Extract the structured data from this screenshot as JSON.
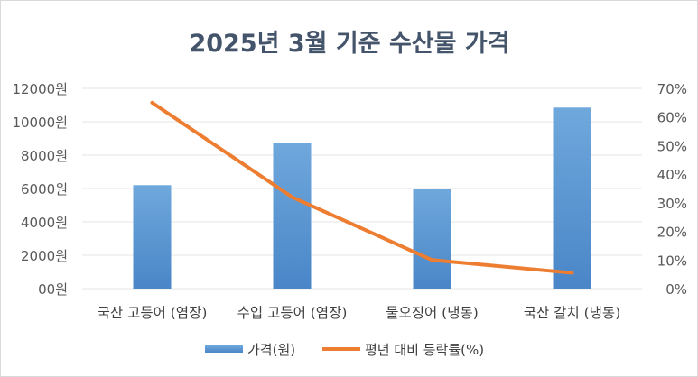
{
  "chart_data": {
    "type": "bar+line",
    "title": "2025년 3월 기준 수산물 가격",
    "categories": [
      "국산 고등어 (염장)",
      "수입 고등어 (염장)",
      "물오징어 (냉동)",
      "국산 갈치 (냉동)"
    ],
    "series": [
      {
        "name": "가격(원)",
        "type": "bar",
        "axis": "left",
        "color": "#5b9bd5",
        "values": [
          6200,
          8750,
          5950,
          10850
        ]
      },
      {
        "name": "평년 대비 등락률(%)",
        "type": "line",
        "axis": "right",
        "color": "#ed7d31",
        "values": [
          65,
          32,
          10,
          5.5
        ]
      }
    ],
    "left_axis": {
      "ylim": [
        0,
        12000
      ],
      "tick_labels": [
        "00원",
        "2000원",
        "4000원",
        "6000원",
        "8000원",
        "10000원",
        "12000원"
      ]
    },
    "right_axis": {
      "ylim": [
        0,
        70
      ],
      "tick_labels": [
        "0%",
        "10%",
        "20%",
        "30%",
        "40%",
        "50%",
        "60%",
        "70%"
      ]
    },
    "grid": true,
    "legend_position": "bottom"
  }
}
